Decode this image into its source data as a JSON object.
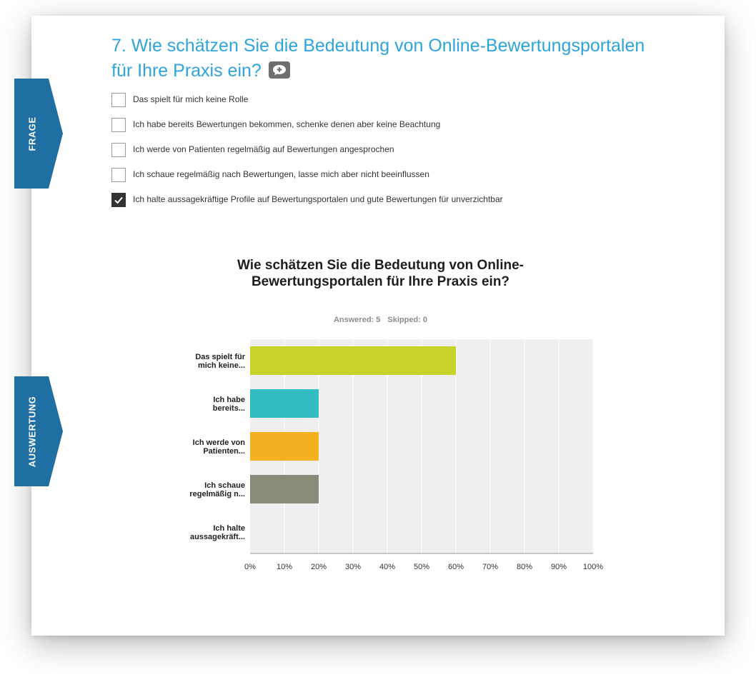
{
  "question": {
    "title": "7. Wie schätzen Sie die Bedeutung von Online-Bewertungsportalen für Ihre Praxis ein?",
    "options": [
      {
        "label": "Das spielt für mich keine Rolle",
        "checked": false
      },
      {
        "label": "Ich habe bereits Bewertungen bekommen, schenke denen aber keine Beachtung",
        "checked": false
      },
      {
        "label": "Ich werde von Patienten regelmäßig auf Bewertungen angesprochen",
        "checked": false
      },
      {
        "label": "Ich schaue regelmäßig nach Bewertungen, lasse mich aber nicht beeinflussen",
        "checked": false
      },
      {
        "label": "Ich halte aussagekräftige Profile auf Bewertungsportalen und gute Bewertungen für unverzichtbar",
        "checked": true
      }
    ]
  },
  "tabs": {
    "frage": "FRAGE",
    "auswertung": "AUSWERTUNG"
  },
  "colors": {
    "accent": "#2fa4dc",
    "tab": "#1f6fa3",
    "checked": "#333333",
    "plot_bg": "#efefef"
  },
  "icons": {
    "comment": "comment-plus-icon",
    "check": "checkmark-icon"
  },
  "chart_meta": {
    "answered": "Answered: 5",
    "skipped": "Skipped: 0"
  },
  "chart_data": {
    "type": "bar",
    "orientation": "horizontal",
    "title": "Wie schätzen Sie die Bedeutung von Online-Bewertungsportalen für Ihre Praxis ein?",
    "categories": [
      [
        "Das spielt für",
        "mich keine..."
      ],
      [
        "Ich habe",
        "bereits..."
      ],
      [
        "Ich werde von",
        "Patienten..."
      ],
      [
        "Ich schaue",
        "regelmäßig n..."
      ],
      [
        "Ich halte",
        "aussagekräft..."
      ]
    ],
    "values": [
      60,
      20,
      20,
      20,
      0
    ],
    "colors": [
      "#c8d32a",
      "#33bdc0",
      "#f5b01f",
      "#878b7a",
      "#c0c0c0"
    ],
    "xlim": [
      0,
      100
    ],
    "xticks": [
      "0%",
      "10%",
      "20%",
      "30%",
      "40%",
      "50%",
      "60%",
      "70%",
      "80%",
      "90%",
      "100%"
    ],
    "grid": true,
    "xlabel": "",
    "ylabel": ""
  }
}
